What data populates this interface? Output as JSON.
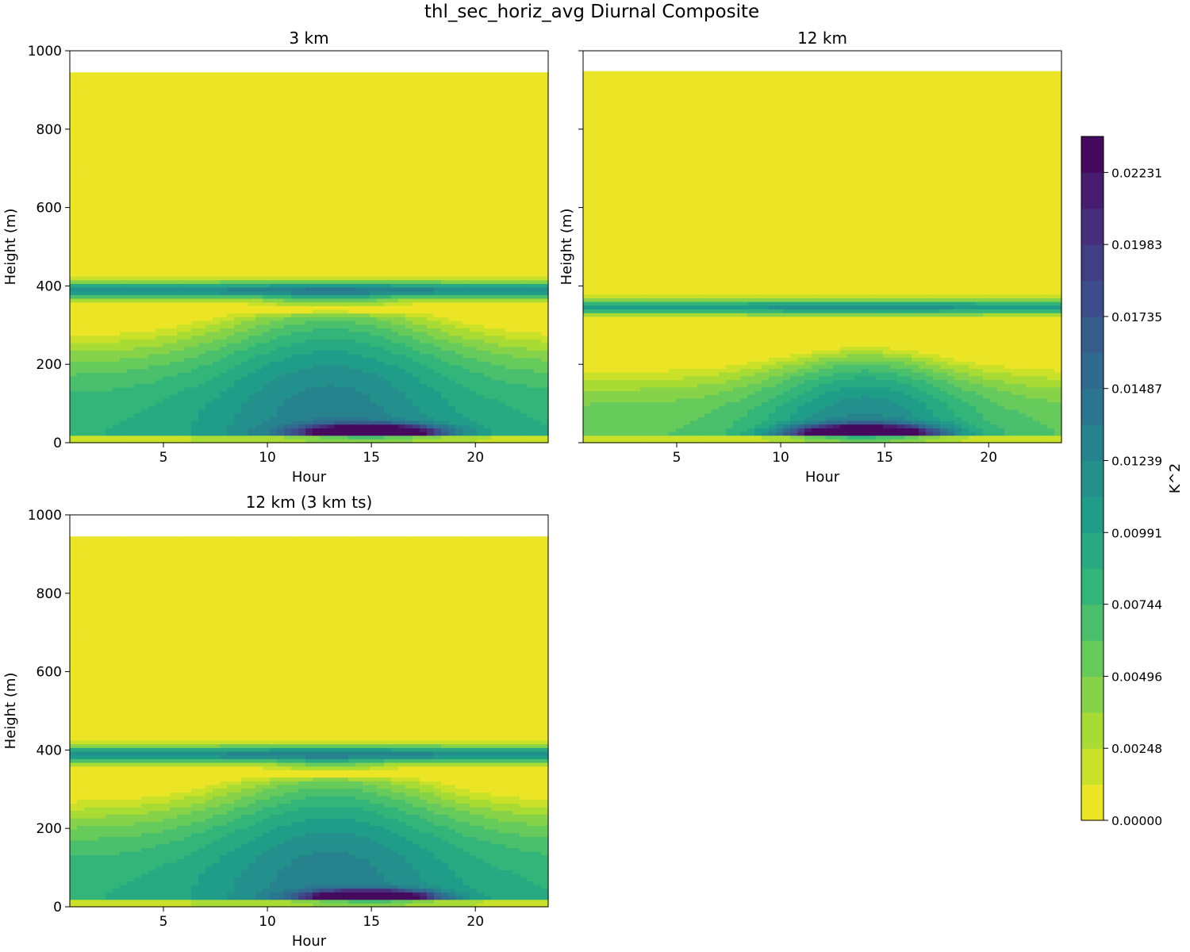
{
  "figure_title": "thl_sec_horiz_avg Diurnal Composite",
  "colormap_stops": [
    "#440154",
    "#482878",
    "#3e4989",
    "#31688e",
    "#26828e",
    "#1f9e89",
    "#35b779",
    "#6ece58",
    "#b5de2b",
    "#fde725"
  ],
  "chart_data": [
    {
      "type": "heatmap",
      "title": "3 km",
      "xlabel": "Hour",
      "ylabel": "Height (m)",
      "xlim": [
        0.5,
        23.5
      ],
      "ylim": [
        0,
        1000
      ],
      "xticks": [
        "5",
        "10",
        "15",
        "20"
      ],
      "xtick_values": [
        5,
        10,
        15,
        20
      ],
      "yticks": [
        "0",
        "200",
        "400",
        "600",
        "800",
        "1000"
      ],
      "ytick_values": [
        0,
        200,
        400,
        600,
        800,
        1000
      ],
      "data_top": 945,
      "features": {
        "inversion_center": 390,
        "inversion_width": 22,
        "inversion_peak": 0.0135,
        "inversion_dip": 0.001,
        "gap_height": 340,
        "gap_width": 12,
        "gap_strength": 0.85,
        "mixed_base": 0.0085,
        "mixed_amp": 0.005,
        "mixed_center_hour": 13,
        "mixed_spread_hour": 6,
        "mixed_top_base": 290,
        "mixed_top_amp": 110,
        "surface_peak": 0.0235,
        "surface_center_hour": 15,
        "surface_spread_hour": 3,
        "surface_height": 28,
        "surface_width": 18,
        "surface_layer": 15
      }
    },
    {
      "type": "heatmap",
      "title": "12 km",
      "xlabel": "Hour",
      "ylabel": "Height (m)",
      "xlim": [
        0.5,
        23.5
      ],
      "ylim": [
        0,
        1000
      ],
      "xticks": [
        "5",
        "10",
        "15",
        "20"
      ],
      "xtick_values": [
        5,
        10,
        15,
        20
      ],
      "yticks": [],
      "ytick_values": [
        0,
        200,
        400,
        600,
        800,
        1000
      ],
      "data_top": 948,
      "features": {
        "inversion_center": 345,
        "inversion_width": 20,
        "inversion_peak": 0.0132,
        "inversion_dip": 0.001,
        "gap_height": 285,
        "gap_width": 38,
        "gap_strength": 1.0,
        "mixed_base": 0.006,
        "mixed_amp": 0.007,
        "mixed_center_hour": 14,
        "mixed_spread_hour": 5,
        "mixed_top_base": 200,
        "mixed_top_amp": 60,
        "surface_peak": 0.0238,
        "surface_center_hour": 14,
        "surface_spread_hour": 3.2,
        "surface_height": 25,
        "surface_width": 20,
        "surface_layer": 15
      }
    },
    {
      "type": "heatmap",
      "title": "12 km (3 km ts)",
      "xlabel": "Hour",
      "ylabel": "Height (m)",
      "xlim": [
        0.5,
        23.5
      ],
      "ylim": [
        0,
        1000
      ],
      "xticks": [
        "5",
        "10",
        "15",
        "20"
      ],
      "xtick_values": [
        5,
        10,
        15,
        20
      ],
      "yticks": [
        "0",
        "200",
        "400",
        "600",
        "800",
        "1000"
      ],
      "ytick_values": [
        0,
        200,
        400,
        600,
        800,
        1000
      ],
      "data_top": 945,
      "features": {
        "inversion_center": 390,
        "inversion_width": 22,
        "inversion_peak": 0.0135,
        "inversion_dip": 0.001,
        "gap_height": 340,
        "gap_width": 12,
        "gap_strength": 0.85,
        "mixed_base": 0.0085,
        "mixed_amp": 0.005,
        "mixed_center_hour": 13,
        "mixed_spread_hour": 6,
        "mixed_top_base": 285,
        "mixed_top_amp": 105,
        "surface_peak": 0.0232,
        "surface_center_hour": 15,
        "surface_spread_hour": 2.8,
        "surface_height": 26,
        "surface_width": 16,
        "surface_layer": 15
      }
    }
  ],
  "colorbar": {
    "label": "K^2",
    "vmin": 0.0,
    "vmax": 0.02355,
    "levels": 19,
    "ticks": [
      "0.00000",
      "0.00248",
      "0.00496",
      "0.00744",
      "0.00991",
      "0.01239",
      "0.01487",
      "0.01735",
      "0.01983",
      "0.02231"
    ],
    "tick_values": [
      0.0,
      0.00248,
      0.00496,
      0.00744,
      0.00991,
      0.01239,
      0.01487,
      0.01735,
      0.01983,
      0.02231
    ]
  }
}
